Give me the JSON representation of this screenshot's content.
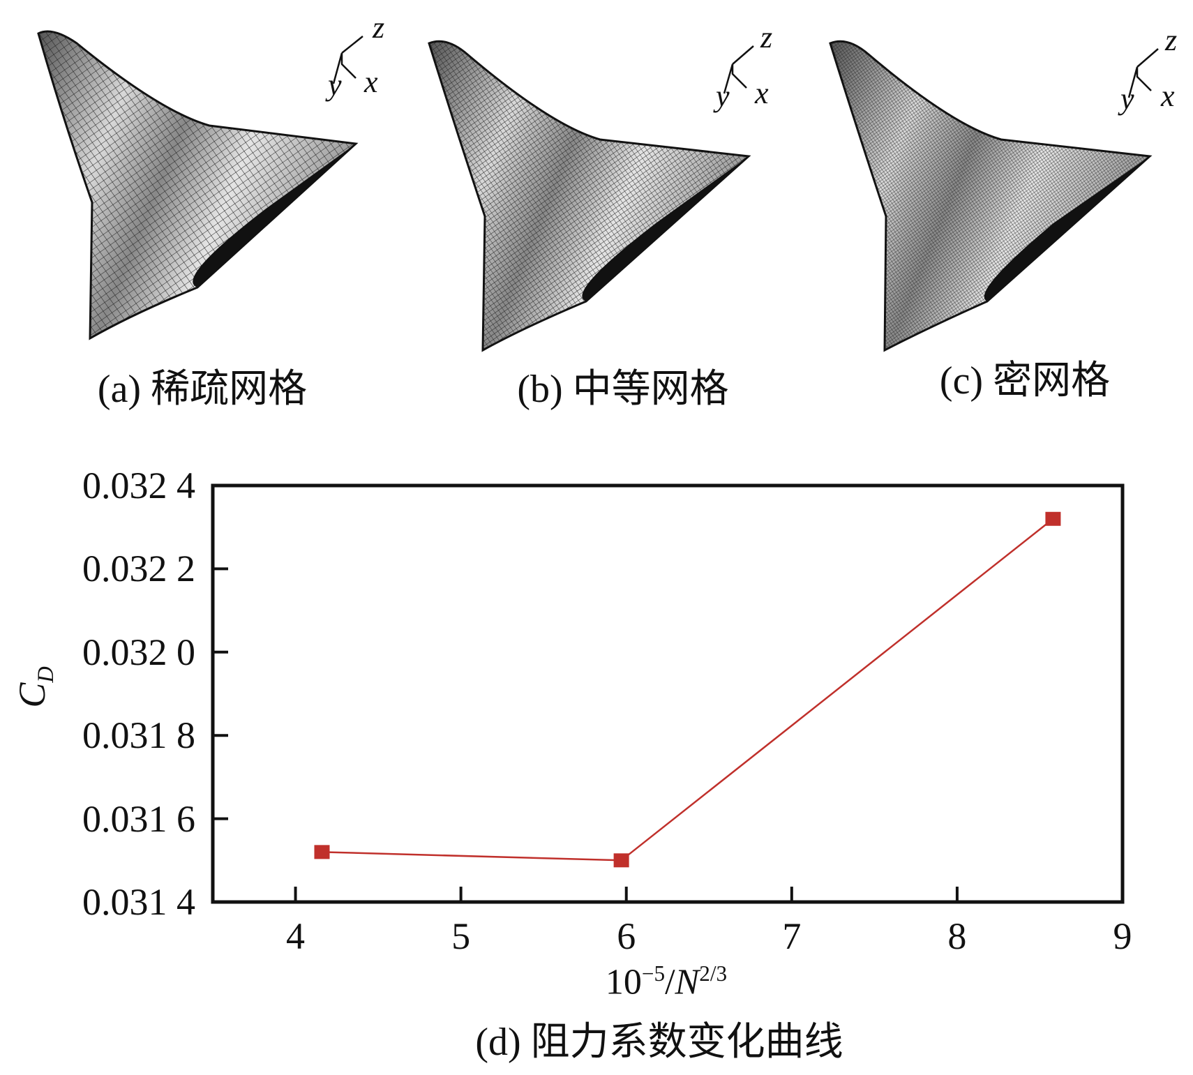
{
  "panels": [
    {
      "id": "a",
      "caption": "(a) 稀疏网格",
      "mesh_density": "coarse"
    },
    {
      "id": "b",
      "caption": "(b) 中等网格",
      "mesh_density": "medium"
    },
    {
      "id": "c",
      "caption": "(c) 密网格",
      "mesh_density": "fine"
    }
  ],
  "axis_triad": {
    "z": "z",
    "y": "y",
    "x": "x"
  },
  "chart_data": {
    "type": "line",
    "title": "(d) 阻力系数变化曲线",
    "xlabel_base": "10",
    "xlabel_exp": "−5",
    "xlabel_mid": "/",
    "xlabel_var": "N",
    "xlabel_exp2": "2/3",
    "ylabel_main": "C",
    "ylabel_sub": "D",
    "xlim": [
      3.5,
      9
    ],
    "ylim": [
      0.0314,
      0.0324
    ],
    "xticks": [
      4,
      5,
      6,
      7,
      8,
      9
    ],
    "xtick_labels": [
      "4",
      "5",
      "6",
      "7",
      "8",
      "9"
    ],
    "yticks": [
      0.0314,
      0.0316,
      0.0318,
      0.032,
      0.0322,
      0.0324
    ],
    "ytick_labels": [
      "0.031 4",
      "0.031 6",
      "0.031 8",
      "0.032 0",
      "0.032 2",
      "0.032 4"
    ],
    "series": [
      {
        "name": "CD",
        "color": "#c0302b",
        "marker": "square",
        "x": [
          4.16,
          5.97,
          8.58
        ],
        "y": [
          0.03152,
          0.0315,
          0.03232
        ]
      }
    ],
    "grid": false,
    "legend": "none"
  }
}
